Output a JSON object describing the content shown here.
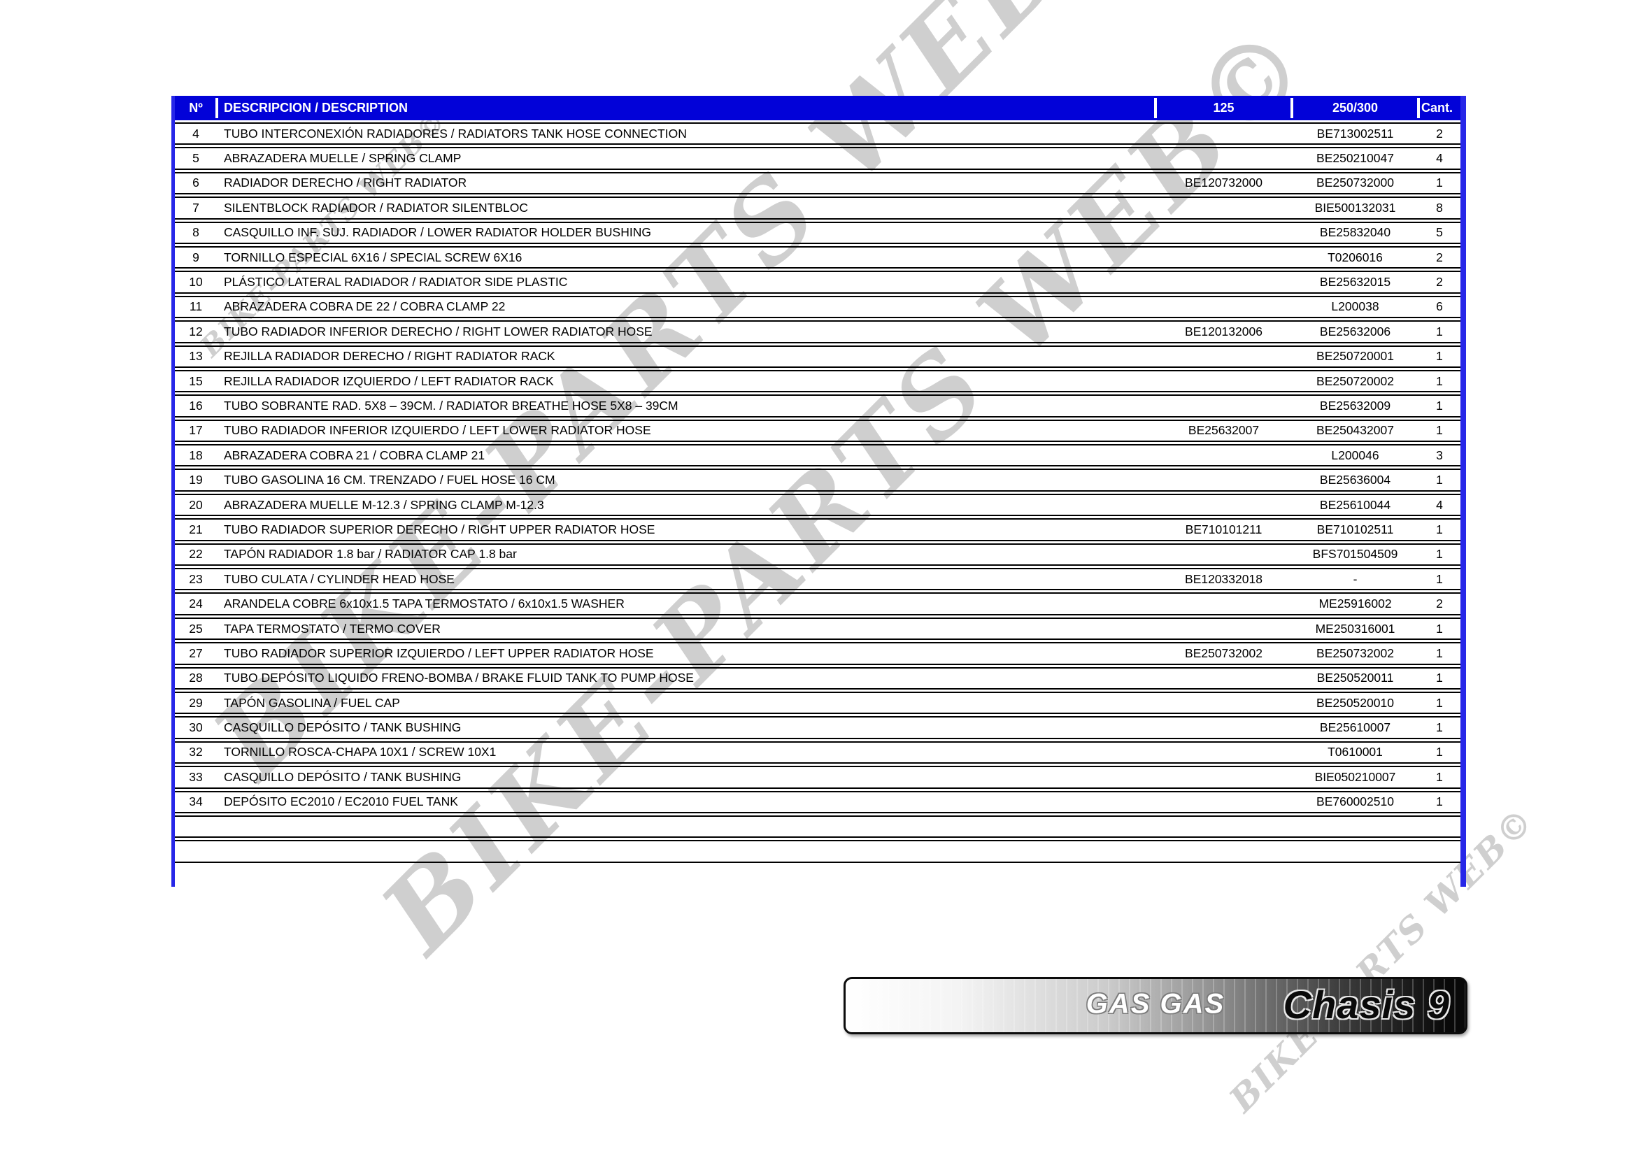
{
  "watermark": {
    "text": "BIKE-PARTS WEB©"
  },
  "colors": {
    "header_blue": "#0202d8",
    "border_blue": "#2727e8",
    "row_line": "#000000",
    "watermark_gray": "#cfcfcf"
  },
  "table": {
    "headers": {
      "num": "Nº",
      "description": "DESCRIPCION / DESCRIPTION",
      "col125": "125",
      "col250": "250/300",
      "cant": "Cant."
    },
    "rows": [
      {
        "num": "4",
        "description": "TUBO INTERCONEXIÓN RADIADORES  / RADIATORS  TANK HOSE CONNECTION",
        "p125": "",
        "p250": "BE713002511",
        "cant": "2"
      },
      {
        "num": "5",
        "description": "ABRAZADERA MUELLE / SPRING CLAMP",
        "p125": "",
        "p250": "BE250210047",
        "cant": "4"
      },
      {
        "num": "6",
        "description": "RADIADOR DERECHO / RIGHT RADIATOR",
        "p125": "BE120732000",
        "p250": "BE250732000",
        "cant": "1"
      },
      {
        "num": "7",
        "description": "SILENTBLOCK RADIADOR / RADIATOR SILENTBLOC",
        "p125": "",
        "p250": "BIE500132031",
        "cant": "8"
      },
      {
        "num": "8",
        "description": "CASQUILLO INF. SUJ. RADIADOR / LOWER RADIATOR HOLDER BUSHING",
        "p125": "",
        "p250": "BE25832040",
        "cant": "5"
      },
      {
        "num": "9",
        "description": "TORNILLO ESPECIAL 6X16 / SPECIAL SCREW 6X16",
        "p125": "",
        "p250": "T0206016",
        "cant": "2"
      },
      {
        "num": "10",
        "description": "PLÁSTICO LATERAL RADIADOR / RADIATOR SIDE PLASTIC",
        "p125": "",
        "p250": "BE25632015",
        "cant": "2"
      },
      {
        "num": "11",
        "description": "ABRAZADERA COBRA DE 22 / COBRA CLAMP 22",
        "p125": "",
        "p250": "L200038",
        "cant": "6"
      },
      {
        "num": "12",
        "description": "TUBO RADIADOR INFERIOR DERECHO / RIGHT LOWER RADIATOR HOSE",
        "p125": "BE120132006",
        "p250": "BE25632006",
        "cant": "1"
      },
      {
        "num": "13",
        "description": "REJILLA RADIADOR DERECHO / RIGHT RADIATOR RACK",
        "p125": "",
        "p250": "BE250720001",
        "cant": "1"
      },
      {
        "num": "15",
        "description": "REJILLA RADIADOR IZQUIERDO / LEFT RADIATOR RACK",
        "p125": "",
        "p250": "BE250720002",
        "cant": "1"
      },
      {
        "num": "16",
        "description": "TUBO SOBRANTE RAD. 5X8 – 39CM. / RADIATOR BREATHE HOSE 5X8 – 39CM",
        "p125": "",
        "p250": "BE25632009",
        "cant": "1"
      },
      {
        "num": "17",
        "description": "TUBO RADIADOR INFERIOR IZQUIERDO / LEFT LOWER RADIATOR HOSE",
        "p125": "BE25632007",
        "p250": "BE250432007",
        "cant": "1"
      },
      {
        "num": "18",
        "description": "ABRAZADERA COBRA 21 / COBRA CLAMP 21",
        "p125": "",
        "p250": "L200046",
        "cant": "3"
      },
      {
        "num": "19",
        "description": "TUBO GASOLINA 16 CM. TRENZADO / FUEL HOSE 16 CM",
        "p125": "",
        "p250": "BE25636004",
        "cant": "1"
      },
      {
        "num": "20",
        "description": "ABRAZADERA MUELLE M-12.3 / SPRING CLAMP M-12.3",
        "p125": "",
        "p250": "BE25610044",
        "cant": "4"
      },
      {
        "num": "21",
        "description": "TUBO RADIADOR SUPERIOR DERECHO / RIGHT UPPER RADIATOR HOSE",
        "p125": "BE710101211",
        "p250": "BE710102511",
        "cant": "1"
      },
      {
        "num": "22",
        "description": "TAPÓN RADIADOR 1.8 bar / RADIATOR CAP 1.8 bar",
        "p125": "",
        "p250": "BFS701504509",
        "cant": "1"
      },
      {
        "num": "23",
        "description": "TUBO CULATA / CYLINDER HEAD HOSE",
        "p125": "BE120332018",
        "p250": "-",
        "cant": "1"
      },
      {
        "num": "24",
        "description": "ARANDELA COBRE 6x10x1.5 TAPA TERMOSTATO / 6x10x1.5 WASHER",
        "p125": "",
        "p250": "ME25916002",
        "cant": "2"
      },
      {
        "num": "25",
        "description": "TAPA TERMOSTATO / TERMO COVER",
        "p125": "",
        "p250": "ME250316001",
        "cant": "1"
      },
      {
        "num": "27",
        "description": "TUBO RADIADOR SUPERIOR IZQUIERDO / LEFT UPPER RADIATOR HOSE",
        "p125": "BE250732002",
        "p250": "BE250732002",
        "cant": "1"
      },
      {
        "num": "28",
        "description": "TUBO DEPÓSITO LIQUIDO FRENO-BOMBA / BRAKE FLUID TANK TO PUMP HOSE",
        "p125": "",
        "p250": "BE250520011",
        "cant": "1"
      },
      {
        "num": "29",
        "description": "TAPÓN GASOLINA / FUEL CAP",
        "p125": "",
        "p250": "BE250520010",
        "cant": "1"
      },
      {
        "num": "30",
        "description": "CASQUILLO DEPÓSITO / TANK BUSHING",
        "p125": "",
        "p250": "BE25610007",
        "cant": "1"
      },
      {
        "num": "32",
        "description": "TORNILLO ROSCA-CHAPA 10X1 / SCREW 10X1",
        "p125": "",
        "p250": "T0610001",
        "cant": "1"
      },
      {
        "num": "33",
        "description": "CASQUILLO DEPÓSITO / TANK BUSHING",
        "p125": "",
        "p250": "BIE050210007",
        "cant": "1"
      },
      {
        "num": "34",
        "description": "DEPÓSITO EC2010 / EC2010 FUEL TANK",
        "p125": "",
        "p250": "BE760002510",
        "cant": "1"
      },
      {
        "num": "",
        "description": "",
        "p125": "",
        "p250": "",
        "cant": ""
      },
      {
        "num": "",
        "description": "",
        "p125": "",
        "p250": "",
        "cant": ""
      }
    ]
  },
  "footer_bar": {
    "brand": "GAS GAS",
    "section": "Chasis 9"
  }
}
